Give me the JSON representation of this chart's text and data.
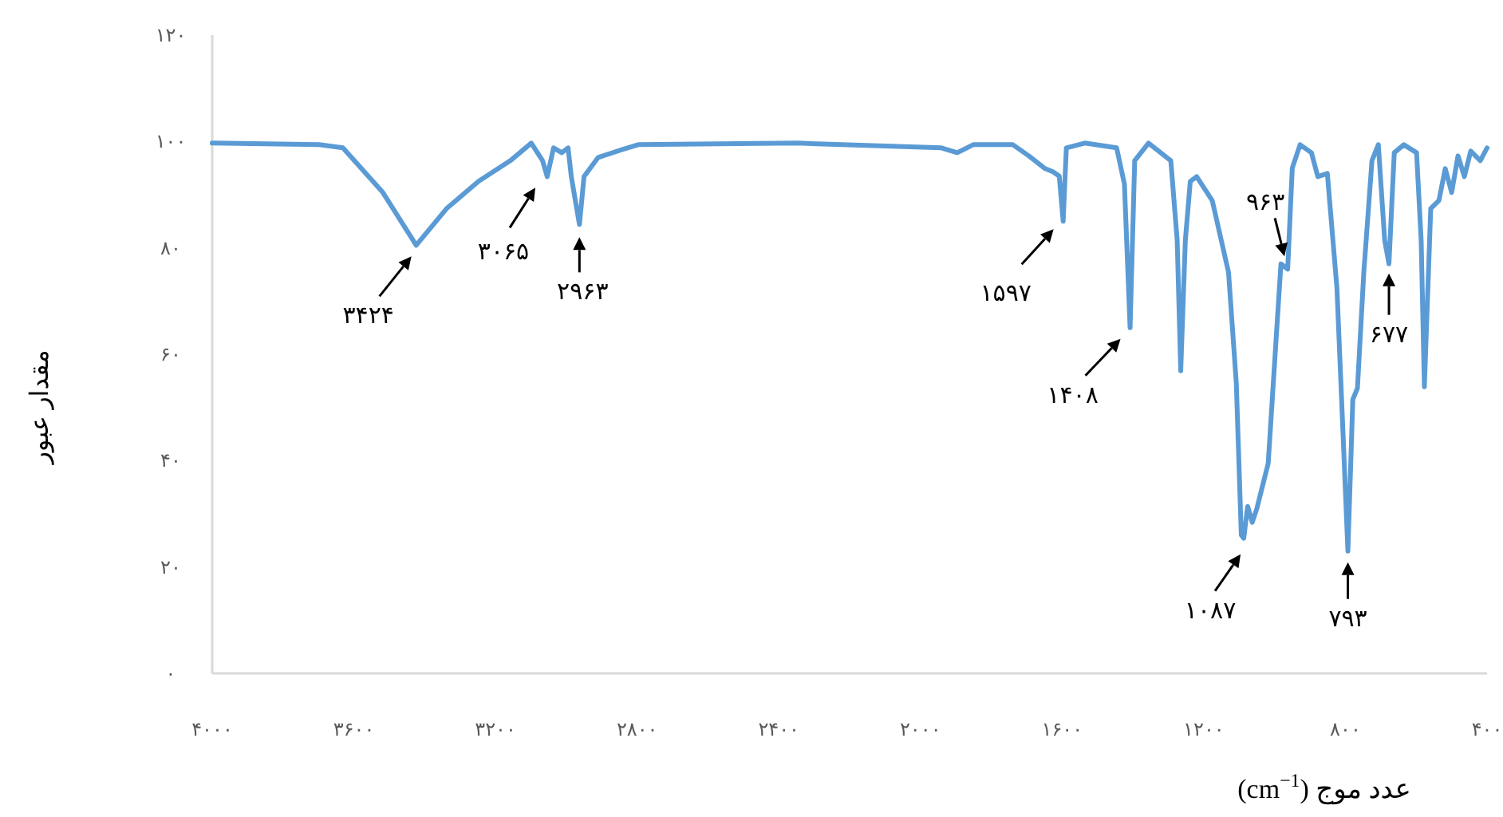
{
  "chart_data": {
    "type": "line",
    "xlabel": "عدد موج (cm$^{−1}$)",
    "ylabel": "مقدار عبور",
    "xlim": [
      4000,
      400
    ],
    "xticks": [
      {
        "value": 4000,
        "label": "۴۰۰۰"
      },
      {
        "value": 3600,
        "label": "۳۶۰۰"
      },
      {
        "value": 3200,
        "label": "۳۲۰۰"
      },
      {
        "value": 2800,
        "label": "۲۸۰۰"
      },
      {
        "value": 2400,
        "label": "۲۴۰۰"
      },
      {
        "value": 2000,
        "label": "۲۰۰۰"
      },
      {
        "value": 1600,
        "label": "۱۶۰۰"
      },
      {
        "value": 1200,
        "label": "۱۲۰۰"
      },
      {
        "value": 800,
        "label": "۸۰۰"
      },
      {
        "value": 400,
        "label": "۴۰۰"
      }
    ],
    "ylim": [
      0,
      120
    ],
    "yticks": [
      {
        "value": 0,
        "label": "۰"
      },
      {
        "value": 20,
        "label": "۲۰"
      },
      {
        "value": 40,
        "label": "۴۰"
      },
      {
        "value": 60,
        "label": "۶۰"
      },
      {
        "value": 80,
        "label": "۸۰"
      },
      {
        "value": 100,
        "label": "۱۰۰"
      },
      {
        "value": 120,
        "label": "۱۲۰"
      }
    ],
    "grid": false,
    "marker": "none",
    "line_style": "solid",
    "series": [
      {
        "color": "#5b9bd5",
        "x": [
          4000,
          3698,
          3631,
          3518,
          3424,
          3338,
          3248,
          3158,
          3099,
          3067,
          3054,
          3036,
          3013,
          2995,
          2986,
          2963,
          2950,
          2910,
          2842,
          2797,
          2347,
          1941,
          1896,
          1851,
          1739,
          1694,
          1648,
          1626,
          1608,
          1597,
          1588,
          1536,
          1446,
          1424,
          1408,
          1395,
          1356,
          1293,
          1275,
          1265,
          1252,
          1238,
          1220,
          1176,
          1130,
          1108,
          1094,
          1087,
          1076,
          1063,
          1050,
          1018,
          995,
          982,
          963,
          950,
          928,
          896,
          878,
          851,
          824,
          806,
          793,
          779,
          766,
          748,
          725,
          707,
          689,
          677,
          662,
          635,
          599,
          586,
          577,
          559,
          536,
          518,
          500,
          482,
          464,
          446,
          419,
          400
        ],
        "values": [
          99.7,
          99.4,
          98.8,
          90.4,
          80.5,
          87.4,
          92.5,
          96.4,
          99.7,
          96.4,
          93.4,
          98.8,
          97.9,
          98.8,
          93.4,
          84.4,
          93.4,
          97,
          98.5,
          99.4,
          99.7,
          98.8,
          97.9,
          99.4,
          99.4,
          97.3,
          94.9,
          94.3,
          93.5,
          85,
          98.8,
          99.7,
          98.8,
          92,
          65,
          96.4,
          99.7,
          96.4,
          81.4,
          56.9,
          81.4,
          92.5,
          93.4,
          88.9,
          75.4,
          54.5,
          26,
          25.4,
          31.4,
          28.4,
          31,
          39.5,
          63.5,
          77,
          76,
          95,
          99.4,
          97.9,
          93.4,
          94,
          72.5,
          44,
          23,
          51.5,
          53.6,
          75.4,
          96.4,
          99.4,
          81.4,
          77,
          97.9,
          99.4,
          97.9,
          81.4,
          53.9,
          87.4,
          88.9,
          94.9,
          90.4,
          97.3,
          93.4,
          98.2,
          96.4,
          98.8
        ]
      }
    ],
    "annotations": [
      {
        "text": "۳۴۲۴",
        "x": 3424,
        "y": 80.5
      },
      {
        "text": "۳۰۶۵",
        "x": 3065,
        "y": 93.4
      },
      {
        "text": "۲۹۶۳",
        "x": 2963,
        "y": 84.4
      },
      {
        "text": "۱۵۹۷",
        "x": 1597,
        "y": 85
      },
      {
        "text": "۱۴۰۸",
        "x": 1408,
        "y": 65
      },
      {
        "text": "۱۰۸۷",
        "x": 1087,
        "y": 25.4
      },
      {
        "text": "۹۶۳",
        "x": 963,
        "y": 76
      },
      {
        "text": "۷۹۳",
        "x": 793,
        "y": 23
      },
      {
        "text": "۶۷۷",
        "x": 677,
        "y": 77
      }
    ]
  }
}
